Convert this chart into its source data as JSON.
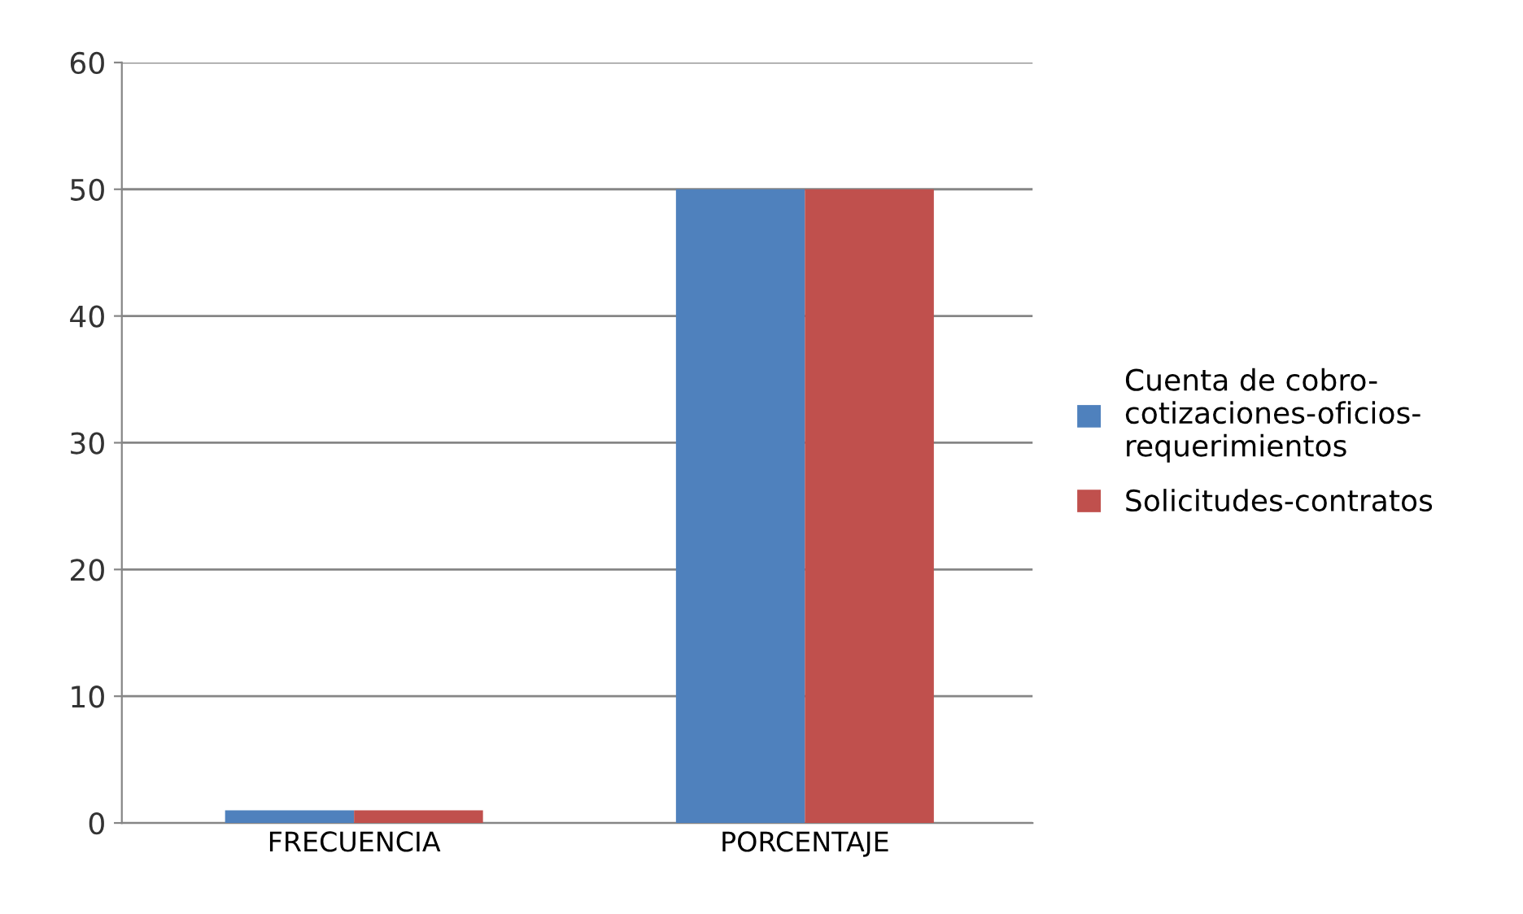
{
  "chart_data": {
    "type": "bar",
    "categories": [
      "FRECUENCIA",
      "PORCENTAJE"
    ],
    "series": [
      {
        "name": "Cuenta de cobro-\ncotizaciones-oficios-\nrequerimientos",
        "color": "#4f81bd",
        "values": [
          1,
          50
        ]
      },
      {
        "name": "Solicitudes-contratos",
        "color": "#c0504d",
        "values": [
          1,
          50
        ]
      }
    ],
    "ylim": [
      0,
      60
    ],
    "yticks": [
      0,
      10,
      20,
      30,
      40,
      50,
      60
    ],
    "grid": "y",
    "legend": "right"
  }
}
